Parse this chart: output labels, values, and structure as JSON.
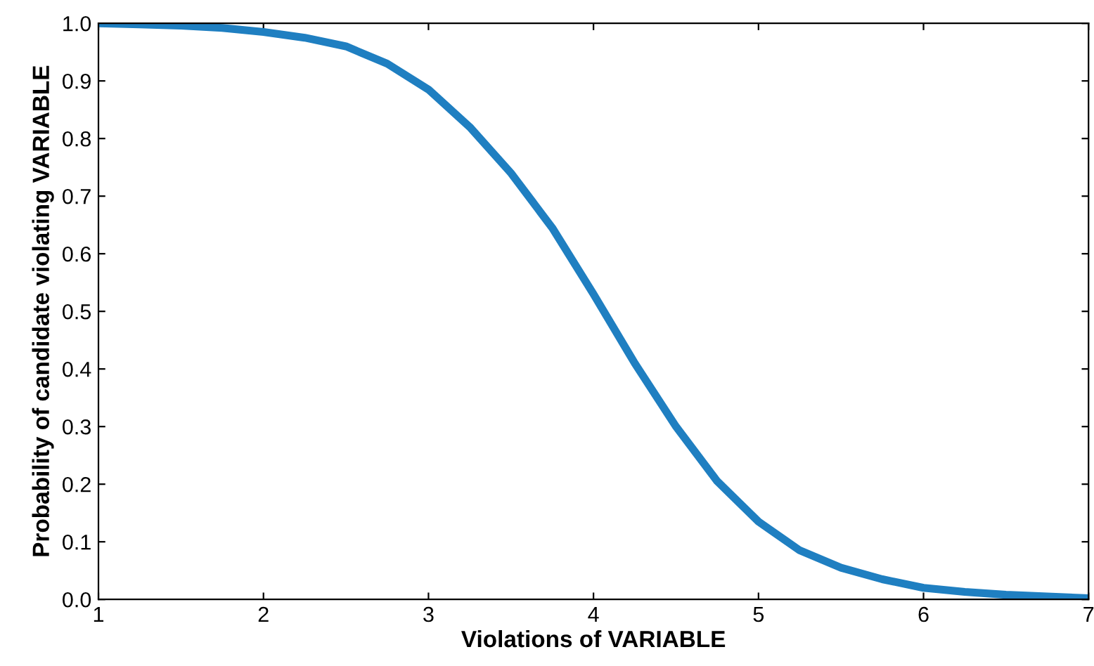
{
  "chart_data": {
    "type": "line",
    "xlabel": "Violations of VARIABLE",
    "ylabel": "Probability of candidate violating VARIABLE",
    "x": [
      1,
      1.25,
      1.5,
      1.75,
      2,
      2.25,
      2.5,
      2.75,
      3,
      3.25,
      3.5,
      3.75,
      4,
      4.25,
      4.5,
      4.75,
      5,
      5.25,
      5.5,
      5.75,
      6,
      6.25,
      6.5,
      6.75,
      7
    ],
    "series": [
      {
        "color": "#1f7fc1",
        "values": [
          1.0,
          0.998,
          0.996,
          0.992,
          0.985,
          0.975,
          0.96,
          0.93,
          0.885,
          0.82,
          0.74,
          0.645,
          0.53,
          0.41,
          0.3,
          0.205,
          0.135,
          0.085,
          0.055,
          0.035,
          0.02,
          0.013,
          0.008,
          0.005,
          0.002
        ]
      }
    ],
    "xlim": [
      1,
      7
    ],
    "xticks": [
      1,
      2,
      3,
      4,
      5,
      6,
      7
    ],
    "ylim": [
      0,
      1
    ],
    "yticks": [
      {
        "value": 0,
        "label": "0.0"
      },
      {
        "value": 0.1,
        "label": "0.1"
      },
      {
        "value": 0.2,
        "label": "0.2"
      },
      {
        "value": 0.3,
        "label": "0.3"
      },
      {
        "value": 0.4,
        "label": "0.4"
      },
      {
        "value": 0.5,
        "label": "0.5"
      },
      {
        "value": 0.6,
        "label": "0.6"
      },
      {
        "value": 0.7,
        "label": "0.7"
      },
      {
        "value": 0.8,
        "label": "0.8"
      },
      {
        "value": 0.9,
        "label": "0.9"
      },
      {
        "value": 1,
        "label": "1.0"
      }
    ],
    "grid": false,
    "marker": "none",
    "line_style": "solid"
  }
}
